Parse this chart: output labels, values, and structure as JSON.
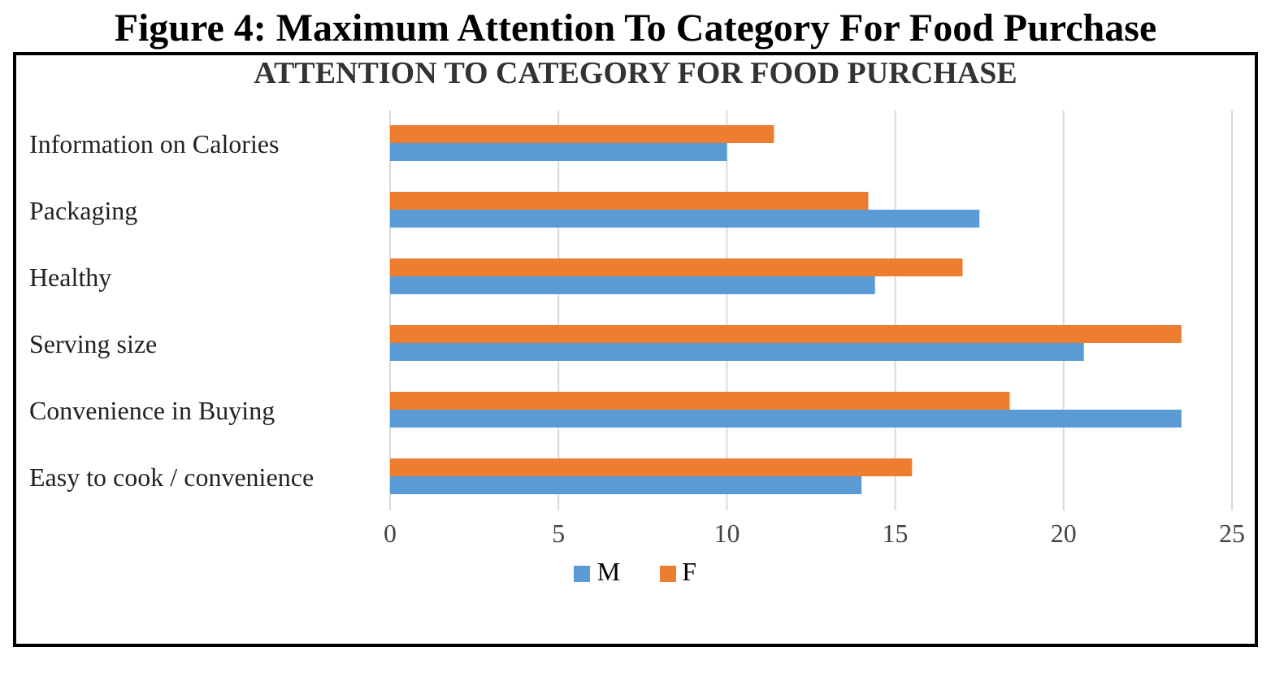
{
  "chart_data": {
    "type": "bar",
    "orientation": "horizontal",
    "title": "Figure 4: Maximum Attention To Category For Food Purchase",
    "subtitle": "ATTENTION TO CATEGORY FOR FOOD PURCHASE",
    "categories": [
      "Information on Calories",
      "Packaging",
      "Healthy",
      "Serving size",
      "Convenience in Buying",
      "Easy to cook / convenience"
    ],
    "series": [
      {
        "name": "M",
        "color": "#5b9bd5",
        "values": [
          10.0,
          17.5,
          14.4,
          20.6,
          23.5,
          14.0
        ]
      },
      {
        "name": "F",
        "color": "#ed7d31",
        "values": [
          11.4,
          14.2,
          17.0,
          23.5,
          18.4,
          15.5
        ]
      }
    ],
    "xlim": [
      0,
      25
    ],
    "xticks": [
      0,
      5,
      10,
      15,
      20,
      25
    ],
    "grid": "x",
    "legend": "bottom"
  }
}
